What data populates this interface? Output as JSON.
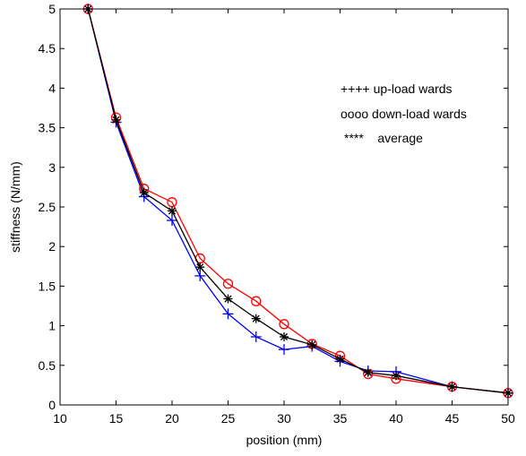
{
  "chart_data": {
    "type": "line",
    "title": "",
    "xlabel": "position (mm)",
    "ylabel": "stiffness (N/mm)",
    "xlim": [
      10,
      50
    ],
    "ylim": [
      0,
      5
    ],
    "xticks": [
      10,
      15,
      20,
      25,
      30,
      35,
      40,
      45,
      50
    ],
    "yticks": [
      0,
      0.5,
      1,
      1.5,
      2,
      2.5,
      3,
      3.5,
      4,
      4.5,
      5
    ],
    "ytick_labels": [
      "0",
      "0.5",
      "1",
      "1.5",
      "2",
      "2.5",
      "3",
      "3.5",
      "4",
      "4.5",
      "5"
    ],
    "grid": false,
    "legend_lines": [
      "++++ up-load wards",
      "oooo down-load wards",
      "****    average"
    ],
    "series": [
      {
        "color": "#0000ff",
        "marker": "plus",
        "x": [
          12.5,
          15,
          17.5,
          20,
          22.5,
          25,
          27.5,
          30,
          32.5,
          35,
          37.5,
          40,
          45,
          50
        ],
        "y": [
          5.0,
          3.57,
          2.63,
          2.33,
          1.63,
          1.15,
          0.86,
          0.7,
          0.74,
          0.55,
          0.43,
          0.42,
          0.23,
          0.15
        ]
      },
      {
        "color": "#ff0000",
        "marker": "circle",
        "x": [
          12.5,
          15,
          17.5,
          20,
          22.5,
          25,
          27.5,
          30,
          32.5,
          35,
          37.5,
          40,
          45,
          50
        ],
        "y": [
          5.0,
          3.63,
          2.73,
          2.56,
          1.85,
          1.53,
          1.31,
          1.02,
          0.77,
          0.62,
          0.39,
          0.33,
          0.23,
          0.15
        ]
      },
      {
        "color": "#000000",
        "marker": "star",
        "x": [
          12.5,
          15,
          17.5,
          20,
          22.5,
          25,
          27.5,
          30,
          32.5,
          35,
          37.5,
          40,
          45,
          50
        ],
        "y": [
          5.0,
          3.6,
          2.68,
          2.45,
          1.74,
          1.34,
          1.09,
          0.86,
          0.76,
          0.58,
          0.41,
          0.37,
          0.23,
          0.15
        ]
      }
    ]
  }
}
